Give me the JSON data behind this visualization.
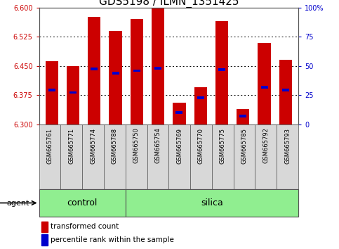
{
  "title": "GDS5198 / ILMN_1351425",
  "samples": [
    "GSM665761",
    "GSM665771",
    "GSM665774",
    "GSM665788",
    "GSM665750",
    "GSM665754",
    "GSM665769",
    "GSM665770",
    "GSM665775",
    "GSM665785",
    "GSM665792",
    "GSM665793"
  ],
  "bar_values": [
    6.462,
    6.45,
    6.575,
    6.54,
    6.57,
    6.6,
    6.355,
    6.395,
    6.565,
    6.34,
    6.51,
    6.465
  ],
  "percentile_values": [
    6.388,
    6.382,
    6.443,
    6.432,
    6.438,
    6.445,
    6.33,
    6.368,
    6.44,
    6.322,
    6.395,
    6.388
  ],
  "ylim_left": [
    6.3,
    6.6
  ],
  "ylim_right": [
    0,
    100
  ],
  "yticks_left": [
    6.3,
    6.375,
    6.45,
    6.525,
    6.6
  ],
  "yticks_right": [
    0,
    25,
    50,
    75,
    100
  ],
  "bar_color": "#cc0000",
  "percentile_color": "#0000cc",
  "bar_bottom": 6.3,
  "agent_label": "agent",
  "control_count": 4,
  "silica_count": 8,
  "legend_items": [
    {
      "label": "transformed count",
      "color": "#cc0000"
    },
    {
      "label": "percentile rank within the sample",
      "color": "#0000cc"
    }
  ],
  "title_fontsize": 11,
  "tick_fontsize": 7,
  "sample_fontsize": 6,
  "group_label_fontsize": 9,
  "legend_fontsize": 7.5,
  "background_color": "#ffffff",
  "plot_bg_color": "#ffffff",
  "tick_color_left": "#cc0000",
  "tick_color_right": "#0000cc",
  "grid_color": "black",
  "sample_bg_color": "#d8d8d8",
  "group_bg_color": "#90ee90",
  "border_color": "#555555"
}
